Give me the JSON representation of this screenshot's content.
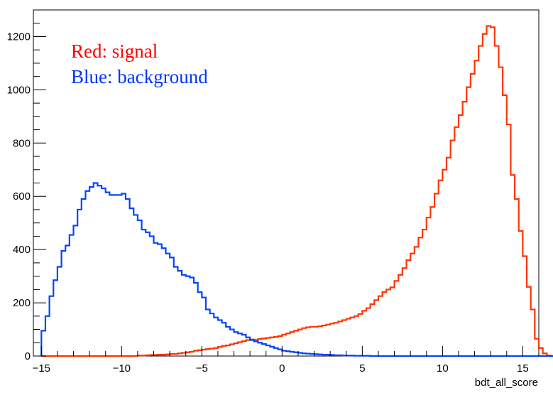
{
  "chart_data": {
    "type": "line",
    "title": "",
    "xlabel": "bdt_all_score",
    "ylabel": "",
    "xlim": [
      -15.5,
      16.0
    ],
    "ylim": [
      0,
      1300
    ],
    "xticks": [
      -15,
      -10,
      -5,
      0,
      5,
      10,
      15
    ],
    "yticks": [
      0,
      200,
      400,
      600,
      800,
      1000,
      1200
    ],
    "grid": false,
    "legend": [
      {
        "text": "Red: signal",
        "color": "#ff0000"
      },
      {
        "text": "Blue: background",
        "color": "#0033ff"
      }
    ],
    "bin_width": 0.25,
    "series": [
      {
        "color": "#ff3300",
        "x_start": -15.0,
        "values": [
          0,
          0,
          0,
          0,
          0,
          0,
          0,
          0,
          0,
          0,
          0,
          0,
          0,
          0,
          0,
          0,
          0,
          0,
          0,
          0,
          0,
          0,
          0,
          0,
          2,
          2,
          3,
          4,
          4,
          5,
          5,
          6,
          8,
          8,
          10,
          12,
          14,
          16,
          20,
          22,
          24,
          26,
          28,
          30,
          34,
          38,
          40,
          44,
          48,
          52,
          56,
          60,
          62,
          60,
          64,
          66,
          68,
          70,
          72,
          75,
          80,
          85,
          90,
          95,
          100,
          105,
          108,
          110,
          110,
          112,
          115,
          118,
          122,
          125,
          130,
          135,
          140,
          145,
          150,
          158,
          170,
          180,
          195,
          210,
          225,
          240,
          250,
          258,
          282,
          305,
          330,
          360,
          385,
          410,
          445,
          475,
          520,
          560,
          610,
          660,
          700,
          745,
          810,
          860,
          905,
          955,
          1010,
          1060,
          1110,
          1165,
          1210,
          1240,
          1235,
          1165,
          1085,
          980,
          870,
          680,
          590,
          470,
          375,
          260,
          175,
          65,
          30,
          10,
          2,
          0,
          0
        ]
      },
      {
        "color": "#0044ff",
        "x_start": -15.0,
        "values": [
          95,
          150,
          225,
          285,
          335,
          395,
          415,
          455,
          490,
          550,
          590,
          620,
          635,
          650,
          640,
          630,
          615,
          605,
          605,
          605,
          610,
          590,
          555,
          530,
          510,
          475,
          465,
          450,
          425,
          420,
          405,
          385,
          370,
          335,
          320,
          305,
          300,
          295,
          275,
          240,
          220,
          175,
          160,
          145,
          135,
          125,
          110,
          100,
          90,
          85,
          80,
          70,
          60,
          55,
          50,
          45,
          40,
          35,
          30,
          25,
          20,
          18,
          16,
          14,
          12,
          10,
          9,
          8,
          7,
          6,
          5,
          5,
          4,
          3,
          3,
          2,
          2,
          2,
          1,
          1,
          1,
          1,
          0,
          0,
          0,
          0,
          0,
          0,
          0,
          0,
          0,
          0,
          0,
          0,
          0,
          0,
          0,
          0,
          0,
          0,
          0,
          0,
          0,
          0,
          0,
          0,
          0,
          0,
          0,
          0,
          0,
          0,
          0,
          0,
          0,
          0,
          0,
          0,
          0,
          0,
          0,
          0,
          0,
          0,
          0,
          0,
          0,
          0,
          0
        ]
      }
    ]
  }
}
